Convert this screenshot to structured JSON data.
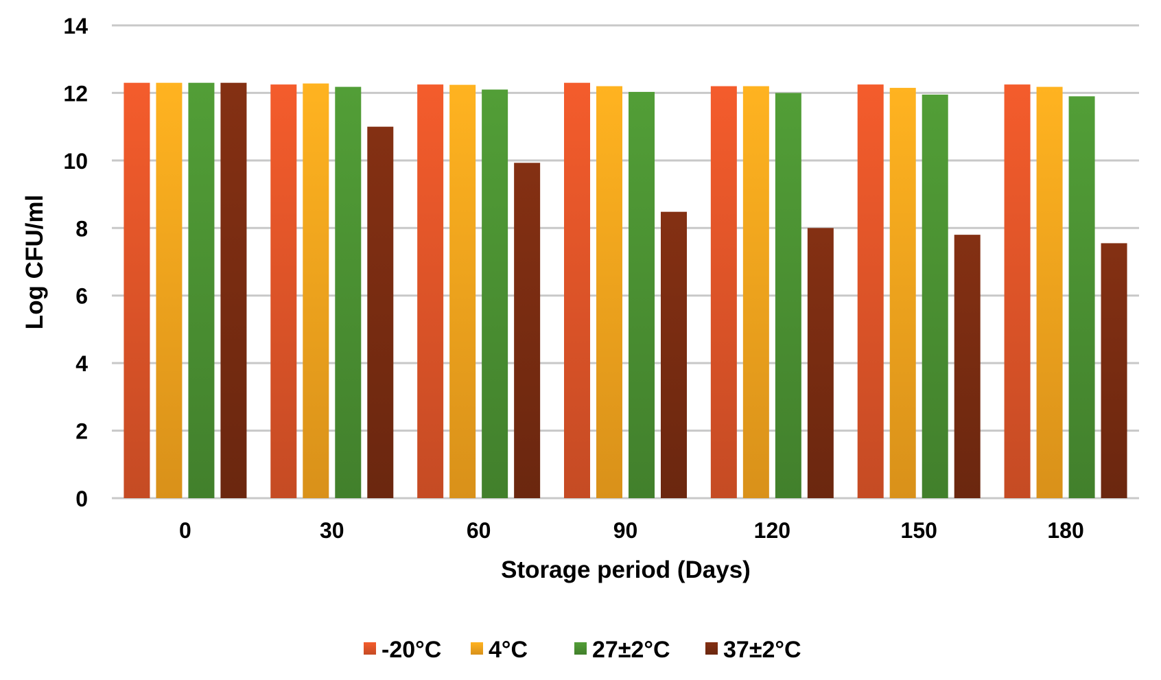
{
  "chart_data": {
    "type": "bar",
    "title": "",
    "xlabel": "Storage period (Days)",
    "ylabel": "Log CFU/ml",
    "ylim": [
      0,
      14
    ],
    "yticks": [
      0,
      2,
      4,
      6,
      8,
      10,
      12,
      14
    ],
    "grid": true,
    "legend_position": "bottom",
    "categories": [
      "0",
      "30",
      "60",
      "90",
      "120",
      "150",
      "180"
    ],
    "series": [
      {
        "name": "-20°C",
        "color": "#E8582A",
        "values": [
          12.3,
          12.25,
          12.25,
          12.3,
          12.2,
          12.25,
          12.25
        ]
      },
      {
        "name": "4°C",
        "color": "#FFAA1E",
        "values": [
          12.3,
          12.28,
          12.24,
          12.2,
          12.2,
          12.15,
          12.18
        ]
      },
      {
        "name": "27±2°C",
        "color": "#4E9634",
        "values": [
          12.3,
          12.18,
          12.1,
          12.03,
          12.0,
          11.95,
          11.9
        ]
      },
      {
        "name": "37±2°C",
        "color": "#7E2E12",
        "values": [
          12.3,
          11.0,
          9.93,
          8.48,
          8.0,
          7.8,
          7.55
        ]
      }
    ]
  }
}
